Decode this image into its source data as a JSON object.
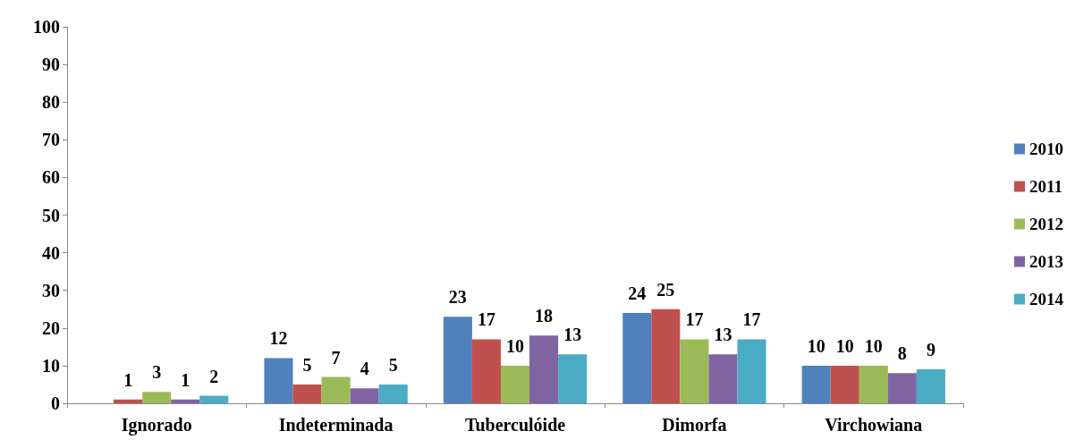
{
  "chart_data": {
    "type": "bar",
    "categories": [
      "Ignorado",
      "Indeterminada",
      "Tuberculóide",
      "Dimorfa",
      "Virchowiana"
    ],
    "series": [
      {
        "name": "2010",
        "color": "#4f81bd",
        "values": [
          null,
          12,
          23,
          24,
          10
        ]
      },
      {
        "name": "2011",
        "color": "#c0504d",
        "values": [
          1,
          5,
          17,
          25,
          10
        ]
      },
      {
        "name": "2012",
        "color": "#9bbb59",
        "values": [
          3,
          7,
          10,
          17,
          10
        ]
      },
      {
        "name": "2013",
        "color": "#8064a2",
        "values": [
          1,
          4,
          18,
          13,
          8
        ]
      },
      {
        "name": "2014",
        "color": "#4bacc6",
        "values": [
          2,
          5,
          13,
          17,
          9
        ]
      }
    ],
    "ylim": [
      0,
      100
    ],
    "yticks": [
      0,
      10,
      20,
      30,
      40,
      50,
      60,
      70,
      80,
      90,
      100
    ],
    "grid": false,
    "legend": "right",
    "data_labels": true
  }
}
